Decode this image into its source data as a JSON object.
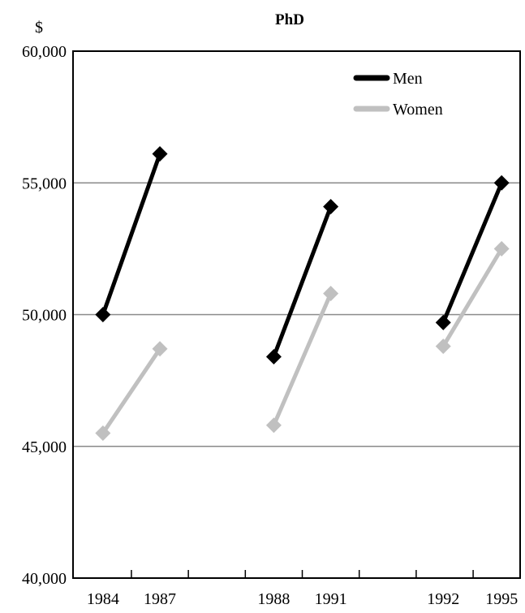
{
  "chart_data": {
    "type": "line",
    "title": "PhD",
    "ylabel": "$",
    "xlabel": "",
    "ylim": [
      40000,
      60000
    ],
    "y_ticks": [
      40000,
      45000,
      50000,
      55000,
      60000
    ],
    "y_tick_labels": [
      "40,000",
      "45,000",
      "50,000",
      "55,000",
      "60,000"
    ],
    "categories": [
      "1984",
      "1987",
      "1988",
      "1991",
      "1992",
      "1995"
    ],
    "groups": [
      [
        "1984",
        "1987"
      ],
      [
        "1988",
        "1991"
      ],
      [
        "1992",
        "1995"
      ]
    ],
    "grid": true,
    "legend_position": "top-right",
    "series": [
      {
        "name": "Men",
        "color": "#000000",
        "values": [
          50000,
          56100,
          48400,
          54100,
          49700,
          55000
        ]
      },
      {
        "name": "Women",
        "color": "#c0c0c0",
        "values": [
          45500,
          48700,
          45800,
          50800,
          48800,
          52500
        ]
      }
    ]
  }
}
